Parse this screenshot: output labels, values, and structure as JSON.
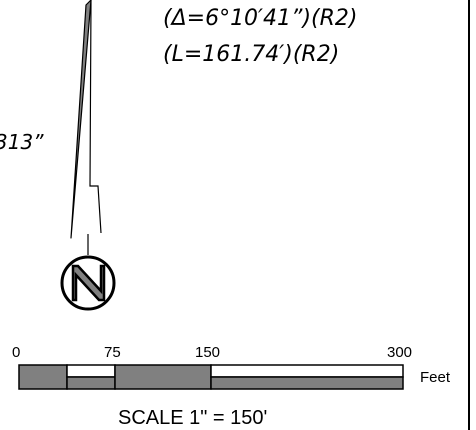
{
  "curve_annotation": {
    "delta": "(Δ=6°10′41”)(R2)",
    "length": "(L=161.74′)(R2)"
  },
  "bearing_fragment": "313”",
  "north_symbol": {
    "icon": "north-arrow-icon",
    "letter_icon": "n-letter-icon"
  },
  "scale_bar": {
    "ticks": [
      "0",
      "75",
      "150",
      "300"
    ],
    "unit": "Feet",
    "caption": "SCALE  1\" = 150'",
    "fill_color": "#808080"
  }
}
